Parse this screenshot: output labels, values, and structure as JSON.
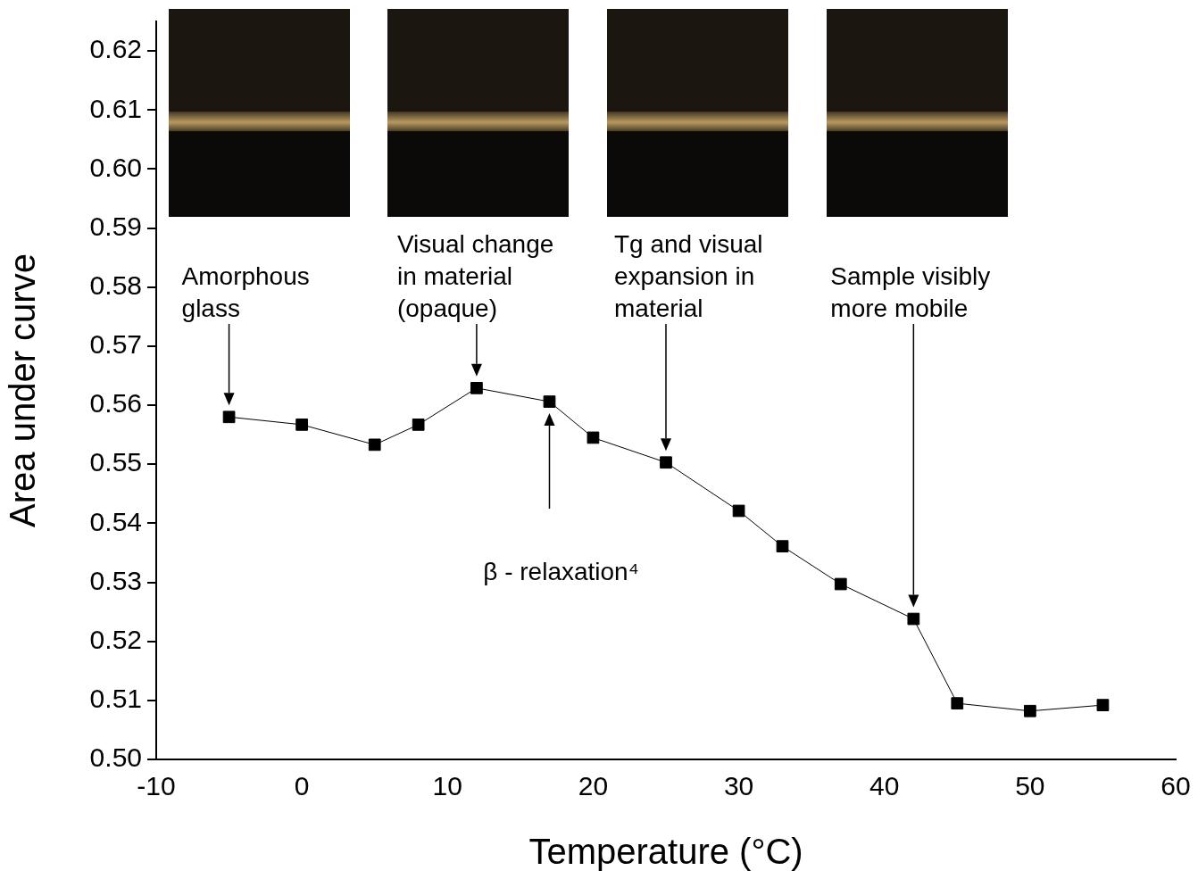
{
  "chart_data": {
    "type": "line",
    "x_label": "Temperature (°C)",
    "y_label": "Area under curve",
    "x": [
      -5,
      0,
      5,
      8,
      12,
      17,
      20,
      25,
      30,
      33,
      37,
      42,
      45,
      50,
      55
    ],
    "values": [
      0.558,
      0.5567,
      0.5533,
      0.5567,
      0.5629,
      0.5606,
      0.5545,
      0.5503,
      0.5421,
      0.5361,
      0.5297,
      0.5238,
      0.5095,
      0.5082,
      0.5092
    ],
    "color": "#000000",
    "marker": "square",
    "line_style": "solid",
    "xlim": [
      -10,
      60
    ],
    "xticks": [
      -10,
      0,
      10,
      20,
      30,
      40,
      50,
      60
    ],
    "ylim": [
      0.5,
      0.625
    ],
    "yticks": [
      {
        "value": 0.5,
        "label": "0.50"
      },
      0.51,
      0.52,
      0.53,
      0.54,
      0.55,
      0.56,
      0.57,
      0.58,
      0.59,
      {
        "value": 0.6,
        "label": "0.60"
      },
      0.61,
      0.62
    ],
    "grid": false,
    "annotations": [
      {
        "lines": [
          "Amorphous",
          "glass"
        ],
        "x": -5
      },
      {
        "lines": [
          "Visual change",
          "in material",
          "(opaque)"
        ],
        "x": 12
      },
      {
        "lines": [
          "Tg and visual",
          "expansion in",
          "material"
        ],
        "x": 25
      },
      {
        "lines": [
          "Sample visibly",
          "more mobile"
        ],
        "x": 42
      },
      {
        "lines": [
          "β - relaxation⁴"
        ],
        "x": 17
      }
    ]
  }
}
